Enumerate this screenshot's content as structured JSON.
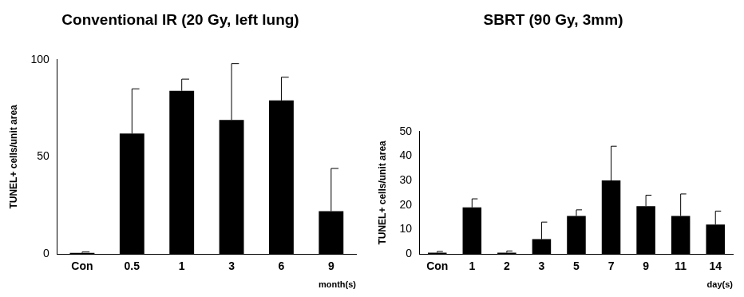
{
  "chart_data": [
    {
      "type": "bar",
      "title": "Conventional IR (20 Gy, left lung)",
      "categories": [
        "Con",
        "0.5",
        "1",
        "3",
        "6",
        "9"
      ],
      "values": [
        0.5,
        62,
        84,
        69,
        79,
        22
      ],
      "errors": [
        0.5,
        23,
        6,
        29,
        12,
        22
      ],
      "color": "#000000",
      "x_label": "month(s)",
      "y_label": "TUNEL+ cells/unit area",
      "ylim": [
        0,
        100
      ],
      "yticks": [
        0,
        50,
        100
      ],
      "grid": false
    },
    {
      "type": "bar",
      "title": "SBRT (90 Gy, 3mm)",
      "categories": [
        "Con",
        "1",
        "2",
        "3",
        "5",
        "7",
        "9",
        "11",
        "14"
      ],
      "values": [
        0.5,
        19,
        0.5,
        6,
        15.5,
        30,
        19.5,
        15.5,
        12
      ],
      "errors": [
        0.5,
        3.5,
        0.7,
        7,
        2.5,
        14,
        4.5,
        9,
        5.5
      ],
      "color": "#000000",
      "x_label": "day(s)",
      "y_label": "TUNEL+ cells/unit area",
      "ylim": [
        0,
        50
      ],
      "yticks": [
        0,
        10,
        20,
        30,
        40,
        50
      ],
      "grid": false
    }
  ]
}
